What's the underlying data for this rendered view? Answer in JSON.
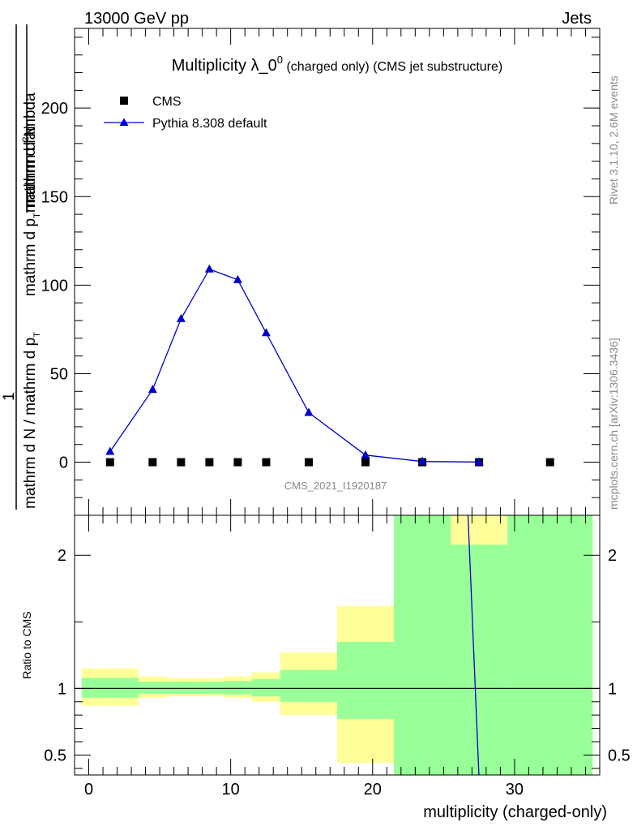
{
  "header": {
    "left": "13000 GeV pp",
    "right": "Jets"
  },
  "side_text": {
    "rivet": "Rivet 3.1.10,  2.6M events",
    "mcplots": "mcplots.cern.ch [arXiv:1306.3436]"
  },
  "chart_data": [
    {
      "type": "scatter",
      "title_main": "Multiplicity λ_0",
      "title_sup": "0",
      "title_sub": " (charged only) (CMS jet substructure)",
      "watermark": "CMS_2021_I1920187",
      "ylabel_lines": [
        "mathrm d N / mathrm d p_T mathrm d lambda",
        "mathrm d N / mathrm d p_T",
        "1",
        "mathrm d²N"
      ],
      "ylabel_parts": {
        "num_a": "mathrm d",
        "num_sup": "2",
        "num_b": "N",
        "den_a": "mathrm d p",
        "den_sub": "T",
        "den_b": "mathrm d lambda",
        "pre_num": "1",
        "pre_den_a": "mathrm d N / mathrm d p",
        "pre_den_sub": "T"
      },
      "ylim": [
        -30,
        245
      ],
      "xlim": [
        -1,
        36
      ],
      "yticks": [
        0,
        50,
        100,
        150,
        200
      ],
      "ytick_labels": [
        "0",
        "50",
        "100",
        "150",
        "200"
      ],
      "legend_position": "top-left",
      "series": [
        {
          "name": "CMS",
          "color": "#000000",
          "marker": "square",
          "x": [
            1.5,
            4.5,
            6.5,
            8.5,
            10.5,
            12.5,
            15.5,
            19.5,
            23.5,
            27.5,
            32.5
          ],
          "y": [
            0,
            0,
            0,
            0,
            0,
            0,
            0,
            0,
            0,
            0,
            0
          ]
        },
        {
          "name": "Pythia 8.308 default",
          "color": "#0000cc",
          "marker": "triangle",
          "x": [
            1.5,
            4.5,
            6.5,
            8.5,
            10.5,
            12.5,
            15.5,
            19.5,
            23.5,
            27.5
          ],
          "y": [
            6,
            41,
            81,
            109,
            103,
            73,
            28,
            4,
            0.4,
            0.1
          ]
        }
      ]
    },
    {
      "type": "area",
      "ylabel": "Ratio to CMS",
      "xlabel": "multiplicity (charged-only)",
      "xlim": [
        -1,
        36
      ],
      "ylim": [
        0.35,
        2.3
      ],
      "xticks": [
        0,
        10,
        20,
        30
      ],
      "xtick_labels": [
        "0",
        "10",
        "20",
        "30"
      ],
      "yticks": [
        0.5,
        1,
        2
      ],
      "ytick_labels": [
        "0.5",
        "1",
        "2"
      ],
      "reference_line": 1,
      "bands": [
        {
          "x0": -0.5,
          "x1": 3.5,
          "yellow": [
            0.87,
            1.15
          ],
          "green": [
            0.93,
            1.08
          ]
        },
        {
          "x0": 3.5,
          "x1": 5.5,
          "yellow": [
            0.93,
            1.09
          ],
          "green": [
            0.96,
            1.05
          ]
        },
        {
          "x0": 5.5,
          "x1": 7.5,
          "yellow": [
            0.94,
            1.08
          ],
          "green": [
            0.96,
            1.05
          ]
        },
        {
          "x0": 7.5,
          "x1": 9.5,
          "yellow": [
            0.94,
            1.08
          ],
          "green": [
            0.96,
            1.05
          ]
        },
        {
          "x0": 9.5,
          "x1": 11.5,
          "yellow": [
            0.93,
            1.09
          ],
          "green": [
            0.955,
            1.055
          ]
        },
        {
          "x0": 11.5,
          "x1": 13.5,
          "yellow": [
            0.9,
            1.12
          ],
          "green": [
            0.94,
            1.07
          ]
        },
        {
          "x0": 13.5,
          "x1": 17.5,
          "yellow": [
            0.8,
            1.27
          ],
          "green": [
            0.9,
            1.14
          ]
        },
        {
          "x0": 17.5,
          "x1": 21.5,
          "yellow": [
            0.44,
            1.62
          ],
          "green": [
            0.77,
            1.35
          ]
        },
        {
          "x0": 21.5,
          "x1": 25.5,
          "yellow": [
            0.3,
            2.3
          ],
          "green": [
            0.3,
            2.3
          ]
        },
        {
          "x0": 25.5,
          "x1": 29.5,
          "yellow": [
            0.3,
            2.3
          ],
          "green": [
            0.3,
            2.08
          ]
        },
        {
          "x0": 29.5,
          "x1": 35.5,
          "yellow": [
            0.3,
            2.3
          ],
          "green": [
            0.3,
            2.3
          ]
        }
      ],
      "band_colors": {
        "yellow": "#ffff99",
        "green": "#99ff99"
      },
      "series": [
        {
          "name": "Pythia 8.308 default",
          "color": "#0000cc",
          "x": [
            26.7,
            27.5
          ],
          "y": [
            2.35,
            0.32
          ]
        }
      ]
    }
  ]
}
